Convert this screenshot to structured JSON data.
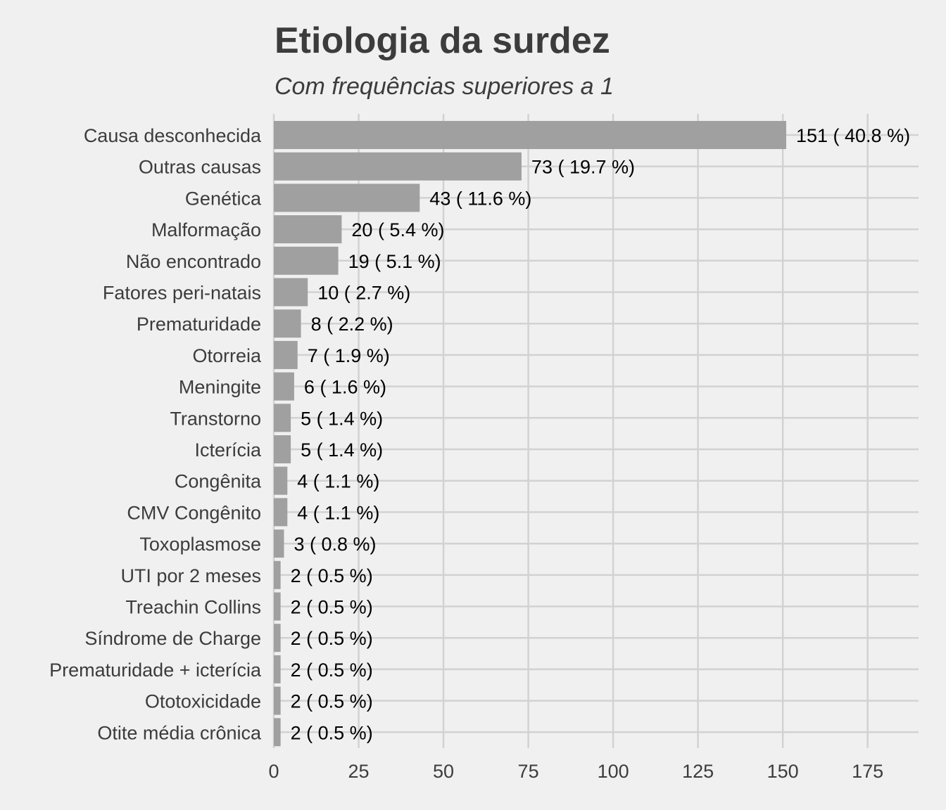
{
  "colors": {
    "background": "#f0f0f0",
    "grid": "#d2d2d2",
    "bar": "#a0a0a0",
    "axis_text": "#3c3c3c",
    "label_text": "#000000"
  },
  "chart_data": {
    "type": "bar",
    "orientation": "horizontal",
    "title": "Etiologia da surdez",
    "subtitle": "Com frequências superiores a 1",
    "xlabel": "",
    "ylabel": "",
    "xlim": [
      0,
      190
    ],
    "xticks": [
      0,
      25,
      50,
      75,
      100,
      125,
      150,
      175
    ],
    "xtick_labels": [
      "0",
      "25",
      "50",
      "75",
      "100",
      "125",
      "150",
      "175"
    ],
    "grid": true,
    "legend": "none",
    "categories": [
      "Causa desconhecida",
      "Outras causas",
      "Genética",
      "Malformação",
      "Não encontrado",
      "Fatores peri-natais",
      "Prematuridade",
      "Otorreia",
      "Meningite",
      "Transtorno",
      "Icterícia",
      "Congênita",
      "CMV Congênito",
      "Toxoplasmose",
      "UTI por 2 meses",
      "Treachin Collins",
      "Síndrome de Charge",
      "Prematuridade + icterícia",
      "Ototoxicidade",
      "Otite média crônica"
    ],
    "values": [
      151,
      73,
      43,
      20,
      19,
      10,
      8,
      7,
      6,
      5,
      5,
      4,
      4,
      3,
      2,
      2,
      2,
      2,
      2,
      2
    ],
    "data_labels": [
      "151 ( 40.8 %)",
      "73 ( 19.7 %)",
      "43 ( 11.6 %)",
      "20 ( 5.4 %)",
      "19 ( 5.1 %)",
      "10 ( 2.7 %)",
      "8 ( 2.2 %)",
      "7 ( 1.9 %)",
      "6 ( 1.6 %)",
      "5 ( 1.4 %)",
      "5 ( 1.4 %)",
      "4 ( 1.1 %)",
      "4 ( 1.1 %)",
      "3 ( 0.8 %)",
      "2 ( 0.5 %)",
      "2 ( 0.5 %)",
      "2 ( 0.5 %)",
      "2 ( 0.5 %)",
      "2 ( 0.5 %)",
      "2 ( 0.5 %)"
    ]
  }
}
